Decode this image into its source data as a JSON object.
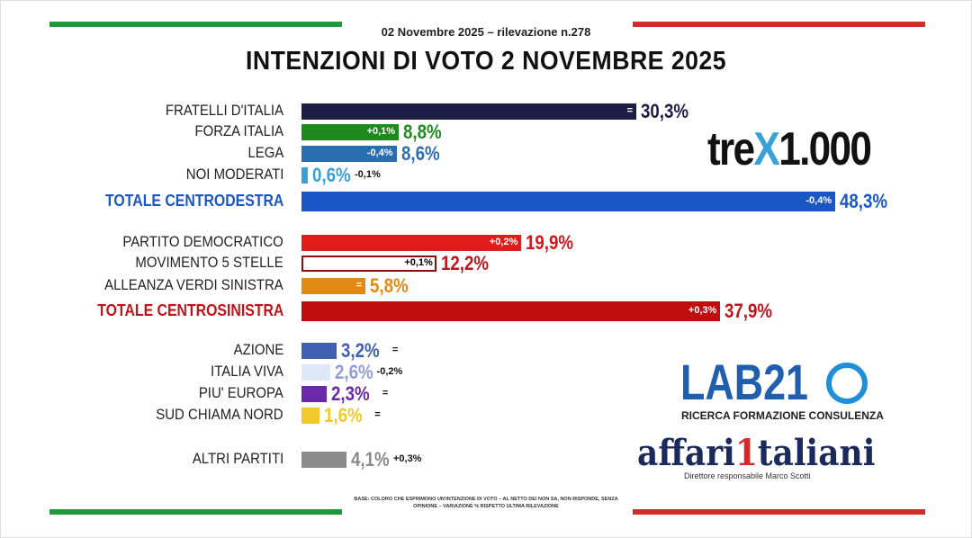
{
  "header": {
    "subtitle": "02 Novembre 2025 – rilevazione n.278",
    "title": "INTENZIONI DI VOTO 2 NOVEMBRE 2025"
  },
  "chart_data": {
    "type": "bar",
    "orientation": "horizontal",
    "title": "INTENZIONI DI VOTO 2 NOVEMBRE 2025",
    "unit": "%",
    "rows": [
      {
        "label": "FRATELLI D'ITALIA",
        "value": 30.3,
        "value_label": "30,3%",
        "change": "=",
        "color": "#1c1d45",
        "text_color": "#1c1d45",
        "total": false
      },
      {
        "label": "FORZA ITALIA",
        "value": 8.8,
        "value_label": "8,8%",
        "change": "+0,1%",
        "color": "#1e8a1e",
        "text_color": "#1e8a1e",
        "total": false
      },
      {
        "label": "LEGA",
        "value": 8.6,
        "value_label": "8,6%",
        "change": "-0,4%",
        "color": "#2a6db0",
        "text_color": "#2a6db0",
        "total": false
      },
      {
        "label": "NOI MODERATI",
        "value": 0.6,
        "value_label": "0,6%",
        "change": "-0,1%",
        "color": "#39a0d8",
        "text_color": "#39a0d8",
        "total": false
      },
      {
        "label": "TOTALE CENTRODESTRA",
        "value": 48.3,
        "value_label": "48,3%",
        "change": "-0,4%",
        "color": "#1a56c4",
        "text_color": "#1a56c4",
        "total": true
      },
      {
        "label": "PARTITO DEMOCRATICO",
        "value": 19.9,
        "value_label": "19,9%",
        "change": "+0,2%",
        "color": "#e41b1b",
        "text_color": "#d4161c",
        "total": false
      },
      {
        "label": "MOVIMENTO 5 STELLE",
        "value": 12.2,
        "value_label": "12,2%",
        "change": "+0,1%",
        "color": "#ffffff",
        "text_color": "#c0141c",
        "total": false
      },
      {
        "label": "ALLEANZA VERDI SINISTRA",
        "value": 5.8,
        "value_label": "5,8%",
        "change": "=",
        "color": "#e08a12",
        "text_color": "#e08a12",
        "total": false
      },
      {
        "label": "TOTALE CENTROSINISTRA",
        "value": 37.9,
        "value_label": "37,9%",
        "change": "+0,3%",
        "color": "#c00d0d",
        "text_color": "#c0141c",
        "total": true
      },
      {
        "label": "AZIONE",
        "value": 3.2,
        "value_label": "3,2%",
        "change": "=",
        "color": "#3f5fb0",
        "text_color": "#3f5fb0",
        "total": false
      },
      {
        "label": "ITALIA VIVA",
        "value": 2.6,
        "value_label": "2,6%",
        "change": "-0,2%",
        "color": "#dfe8f7",
        "text_color": "#8f9fd0",
        "total": false
      },
      {
        "label": "PIU' EUROPA",
        "value": 2.3,
        "value_label": "2,3%",
        "change": "=",
        "color": "#6a2aa8",
        "text_color": "#6a2aa8",
        "total": false
      },
      {
        "label": "SUD CHIAMA NORD",
        "value": 1.6,
        "value_label": "1,6%",
        "change": "=",
        "color": "#f2c92a",
        "text_color": "#f2c92a",
        "total": false
      },
      {
        "label": "ALTRI PARTITI",
        "value": 4.1,
        "value_label": "4,1%",
        "change": "+0,3%",
        "color": "#8a8a8a",
        "text_color": "#8a8a8a",
        "total": false
      }
    ]
  },
  "logos": {
    "tre_a": "tre",
    "tre_x": "X",
    "tre_b": "1.000",
    "lab21": "LAB21",
    "lab21_sub": "RICERCA FORMAZIONE CONSULENZA",
    "affari": "affari",
    "affari_1": "1",
    "affari_b": "taliani",
    "affari_sub": "Direttore responsabile Marco Scotti"
  },
  "footnote": "BASE: COLORO CHE ESPRIMONO UN'INTENZIONE DI VOTO – AL NETTO DEI NON SA, NON RISPONDE, SENZA OPINIONE – VARIAZIONE % RISPETTO ULTIMA RILEVAZIONE",
  "colors": {
    "flag_green": "#1e9a3c",
    "flag_red": "#d42a2a"
  }
}
